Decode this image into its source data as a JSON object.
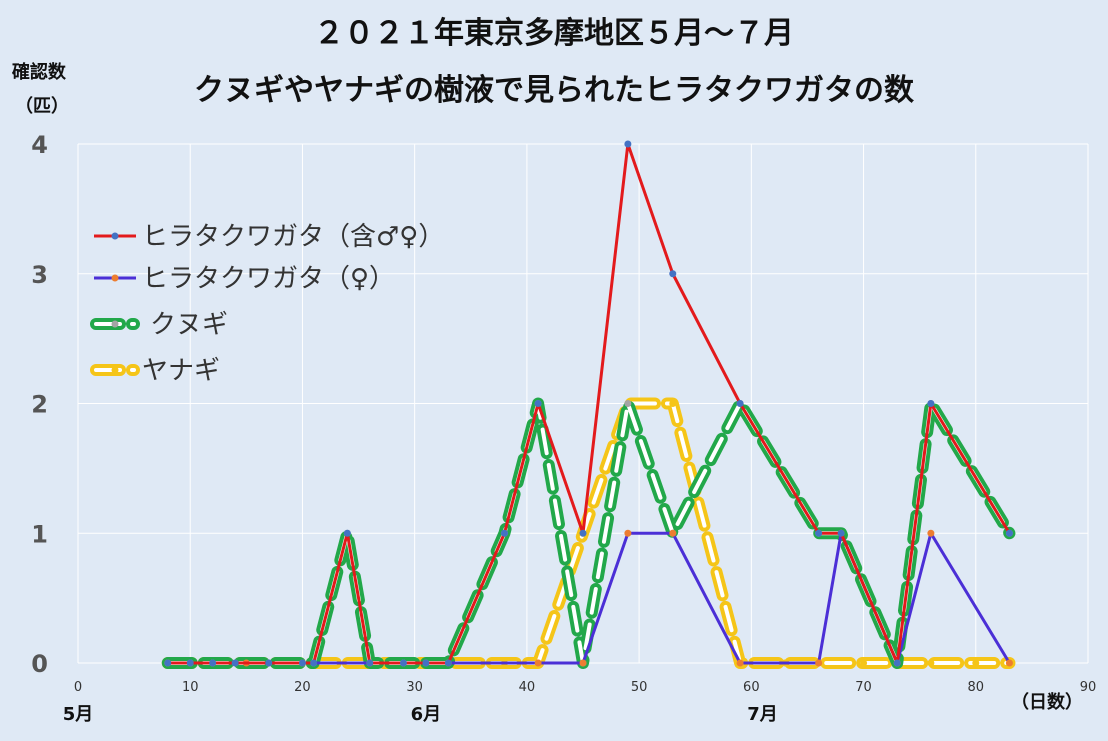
{
  "chart_data": {
    "type": "line",
    "title": "２０２１年東京多摩地区５月～７月",
    "subtitle": "クヌギやヤナギの樹液で見られたヒラタクワガタの数",
    "ylabel": "確認数\n（匹）",
    "xlabel": "（日数）",
    "xlim": [
      0,
      90
    ],
    "ylim": [
      0,
      4
    ],
    "x_ticks": [
      0,
      10,
      20,
      30,
      40,
      50,
      60,
      70,
      80,
      90
    ],
    "y_ticks": [
      0,
      1,
      2,
      3,
      4
    ],
    "month_labels": [
      {
        "x": 0,
        "label": "5月"
      },
      {
        "x": 31,
        "label": "6月"
      },
      {
        "x": 61,
        "label": "7月"
      }
    ],
    "grid": true,
    "legend": "left",
    "series": [
      {
        "name": "ヒラタクワガタ（含♂♀）",
        "color": "#e31a1c",
        "marker_color": "#4472c4",
        "style": "solid",
        "points": [
          [
            8,
            0
          ],
          [
            10,
            0
          ],
          [
            12,
            0
          ],
          [
            14,
            0
          ],
          [
            17,
            0
          ],
          [
            20,
            0
          ],
          [
            21,
            0
          ],
          [
            24,
            1
          ],
          [
            26,
            0
          ],
          [
            29,
            0
          ],
          [
            31,
            0
          ],
          [
            33,
            0
          ],
          [
            38,
            1
          ],
          [
            41,
            2
          ],
          [
            45,
            1
          ],
          [
            49,
            4
          ],
          [
            53,
            3
          ],
          [
            59,
            2
          ],
          [
            66,
            1
          ],
          [
            68,
            1
          ],
          [
            73,
            0
          ],
          [
            76,
            2
          ],
          [
            83,
            1
          ]
        ]
      },
      {
        "name": "ヒラタクワガタ（♀）",
        "color": "#4b2fd6",
        "marker_color": "#ed7d31",
        "style": "solid",
        "points": [
          [
            8,
            0
          ],
          [
            15,
            0
          ],
          [
            20,
            0
          ],
          [
            26,
            0
          ],
          [
            33,
            0
          ],
          [
            41,
            0
          ],
          [
            45,
            0
          ],
          [
            49,
            1
          ],
          [
            53,
            1
          ],
          [
            59,
            0
          ],
          [
            66,
            0
          ],
          [
            68,
            1
          ],
          [
            73,
            0
          ],
          [
            76,
            1
          ],
          [
            83,
            0
          ]
        ]
      },
      {
        "name": "クヌギ",
        "color": "#22a84a",
        "marker_color": "#a5a5a5",
        "style": "double-dash",
        "points": [
          [
            8,
            0
          ],
          [
            10,
            0
          ],
          [
            12,
            0
          ],
          [
            14,
            0
          ],
          [
            17,
            0
          ],
          [
            20,
            0
          ],
          [
            21,
            0
          ],
          [
            24,
            1
          ],
          [
            26,
            0
          ],
          [
            29,
            0
          ],
          [
            31,
            0
          ],
          [
            33,
            0
          ],
          [
            38,
            1
          ],
          [
            41,
            2
          ],
          [
            45,
            0
          ],
          [
            49,
            2
          ],
          [
            53,
            1
          ],
          [
            59,
            2
          ],
          [
            66,
            1
          ],
          [
            68,
            1
          ],
          [
            73,
            0
          ],
          [
            76,
            2
          ],
          [
            83,
            1
          ]
        ]
      },
      {
        "name": "ヤナギ",
        "color": "#f5c518",
        "marker_color": "#f5c518",
        "style": "double-dash",
        "points": [
          [
            8,
            0
          ],
          [
            12,
            0
          ],
          [
            15,
            0
          ],
          [
            21,
            0
          ],
          [
            26,
            0
          ],
          [
            33,
            0
          ],
          [
            38,
            0
          ],
          [
            41,
            0
          ],
          [
            45,
            1
          ],
          [
            49,
            2
          ],
          [
            53,
            2
          ],
          [
            59,
            0
          ],
          [
            63,
            0
          ],
          [
            66,
            0
          ],
          [
            70,
            0
          ],
          [
            73,
            0
          ],
          [
            76,
            0
          ],
          [
            80,
            0
          ],
          [
            83,
            0
          ]
        ]
      }
    ]
  }
}
